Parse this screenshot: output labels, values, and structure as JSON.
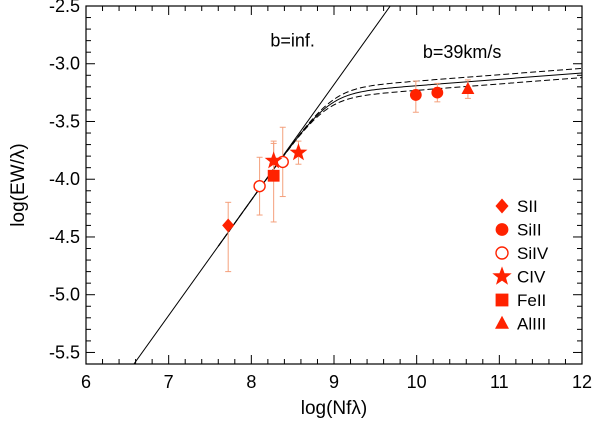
{
  "chart_data": {
    "type": "scatter",
    "title": "",
    "xlabel": "log(Nfλ)",
    "ylabel": "log(EW/λ)",
    "xlim": [
      6,
      12
    ],
    "ylim": [
      -5.6,
      -2.5
    ],
    "xticks": [
      "6",
      "7",
      "8",
      "9",
      "10",
      "11",
      "12"
    ],
    "yticks": [
      "-2.5",
      "-3.0",
      "-3.5",
      "-4.0",
      "-4.5",
      "-5.0",
      "-5.5"
    ],
    "grid": false,
    "legend_position": "lower-right",
    "annotations": [
      {
        "text": "b=inf.",
        "x": 8.5,
        "y": -2.85
      },
      {
        "text": "b=39km/s",
        "x": 10.55,
        "y": -2.95
      }
    ],
    "curves": [
      {
        "style": "solid",
        "kind": "linear",
        "slope": 1,
        "intercept": -12.18
      },
      {
        "style": "solid",
        "kind": "curve-of-growth",
        "b": 39
      },
      {
        "style": "dashed",
        "kind": "curve-of-growth-upper"
      },
      {
        "style": "dashed",
        "kind": "curve-of-growth-lower"
      }
    ],
    "series": [
      {
        "name": "SII",
        "marker": "diamond",
        "filled": true,
        "points": [
          {
            "x": 7.72,
            "y": -4.4,
            "yerr": [
              0.4,
              0.2
            ]
          }
        ]
      },
      {
        "name": "SiII",
        "marker": "circle",
        "filled": true,
        "points": [
          {
            "x": 9.99,
            "y": -3.27,
            "yerr": [
              0.15,
              0.12
            ]
          },
          {
            "x": 10.25,
            "y": -3.25,
            "yerr": [
              0.08,
              0.08
            ]
          }
        ]
      },
      {
        "name": "SiIV",
        "marker": "circle",
        "filled": false,
        "points": [
          {
            "x": 8.1,
            "y": -4.06,
            "yerr": [
              0.25,
              0.25
            ]
          },
          {
            "x": 8.38,
            "y": -3.85,
            "yerr": [
              0.3,
              0.3
            ]
          }
        ]
      },
      {
        "name": "CIV",
        "marker": "star",
        "filled": true,
        "points": [
          {
            "x": 8.27,
            "y": -3.84,
            "yerr": [
              0.15,
              0.15
            ]
          },
          {
            "x": 8.57,
            "y": -3.77,
            "yerr": [
              0.1,
              0.1
            ]
          }
        ]
      },
      {
        "name": "FeII",
        "marker": "square",
        "filled": true,
        "points": [
          {
            "x": 8.27,
            "y": -3.97,
            "yerr": [
              0.4,
              0.3
            ]
          }
        ]
      },
      {
        "name": "AlIII",
        "marker": "triangle",
        "filled": true,
        "points": [
          {
            "x": 10.62,
            "y": -3.22,
            "yerr": [
              0.08,
              0.08
            ]
          }
        ]
      }
    ],
    "colors": {
      "marker": "#ff2200",
      "errorbar": "#f4a07c",
      "line": "#000000"
    }
  }
}
